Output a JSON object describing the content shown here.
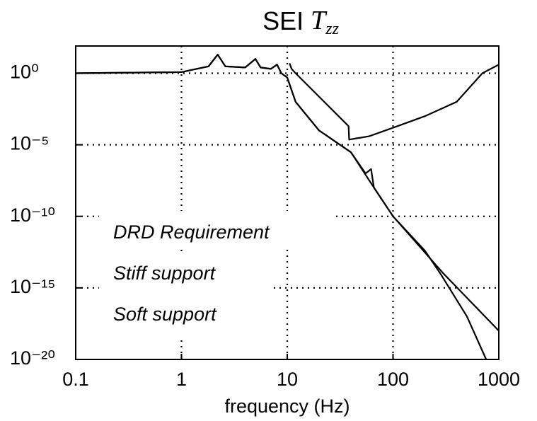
{
  "chart_data": {
    "type": "line",
    "title_parts": [
      "SEI",
      "T",
      "zz"
    ],
    "xlabel": "frequency (Hz)",
    "xscale": "log",
    "yscale": "log",
    "xlim": [
      0.1,
      1000
    ],
    "ylim": [
      1e-20,
      80
    ],
    "xticks": [
      0.1,
      1,
      10,
      100,
      1000
    ],
    "yticks": [
      {
        "value": 1,
        "label": "10⁰"
      },
      {
        "value": 1e-05,
        "label": "10⁻⁵"
      },
      {
        "value": 1e-10,
        "label": "10⁻¹⁰"
      },
      {
        "value": 1e-15,
        "label": "10⁻¹⁵"
      },
      {
        "value": 1e-20,
        "label": "10⁻²⁰"
      }
    ],
    "grid": true,
    "series": [
      {
        "name": "DRD Requirement",
        "color": "#000000",
        "x": [
          10.5,
          11,
          12,
          38,
          38.5,
          60,
          110,
          200,
          400,
          700,
          1000
        ],
        "values": [
          5,
          2,
          1,
          0.0002,
          2.3e-05,
          4e-05,
          0.0002,
          0.001,
          0.01,
          1,
          4
        ]
      },
      {
        "name": "Stiff support",
        "color": "#000000",
        "x": [
          0.1,
          1,
          1.8,
          2.2,
          2.6,
          4,
          5,
          5.6,
          7,
          8,
          8.8,
          10,
          12,
          20,
          40,
          55,
          62,
          66,
          100,
          300,
          1000
        ],
        "values": [
          1,
          1.2,
          3,
          20,
          3,
          2.5,
          10,
          2.5,
          2,
          4,
          1,
          0.5,
          0.01,
          0.0001,
          3e-06,
          1e-07,
          2e-07,
          1e-08,
          1e-10,
          1e-14,
          1e-18
        ]
      },
      {
        "name": "Soft support",
        "color": "#000000",
        "x": [
          0.1,
          1,
          1.8,
          2.2,
          2.6,
          4,
          5,
          5.6,
          7,
          8,
          8.8,
          10,
          12,
          20,
          40,
          60,
          100,
          200,
          280,
          500,
          760
        ],
        "values": [
          1,
          1.2,
          3,
          20,
          3,
          2.5,
          10,
          2.5,
          2,
          4,
          1,
          0.5,
          0.01,
          0.0001,
          3e-06,
          3e-08,
          1e-10,
          4e-13,
          1e-14,
          1e-17,
          1e-20
        ]
      }
    ]
  }
}
